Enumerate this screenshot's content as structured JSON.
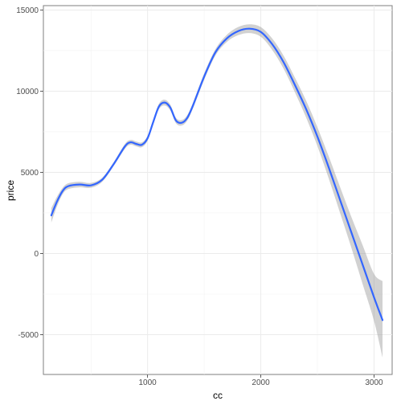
{
  "chart_data": {
    "type": "line",
    "title": "",
    "xlabel": "cc",
    "ylabel": "price",
    "xlim": [
      80,
      3160
    ],
    "ylim": [
      -7450,
      15270
    ],
    "grid": true,
    "legend": "none",
    "x_ticks": [
      1000,
      2000,
      3000
    ],
    "x_tick_labels": [
      "1000",
      "2000",
      "3000"
    ],
    "y_ticks": [
      -5000,
      0,
      5000,
      10000,
      15000
    ],
    "y_tick_labels": [
      "-5000",
      "0",
      "5000",
      "10000",
      "15000"
    ],
    "series": [
      {
        "style": "smooth",
        "color": "#3366ff",
        "band_color": "#cccccc",
        "points": [
          {
            "x": 150,
            "y": 2350,
            "lower": 1900,
            "upper": 2800
          },
          {
            "x": 200,
            "y": 3200,
            "lower": 2900,
            "upper": 3500
          },
          {
            "x": 250,
            "y": 3850,
            "lower": 3650,
            "upper": 4050
          },
          {
            "x": 300,
            "y": 4150,
            "lower": 3970,
            "upper": 4330
          },
          {
            "x": 400,
            "y": 4250,
            "lower": 4080,
            "upper": 4420
          },
          {
            "x": 500,
            "y": 4200,
            "lower": 4050,
            "upper": 4350
          },
          {
            "x": 600,
            "y": 4550,
            "lower": 4420,
            "upper": 4680
          },
          {
            "x": 700,
            "y": 5500,
            "lower": 5380,
            "upper": 5620
          },
          {
            "x": 800,
            "y": 6600,
            "lower": 6450,
            "upper": 6750
          },
          {
            "x": 850,
            "y": 6850,
            "lower": 6700,
            "upper": 7000
          },
          {
            "x": 900,
            "y": 6750,
            "lower": 6600,
            "upper": 6900
          },
          {
            "x": 950,
            "y": 6700,
            "lower": 6550,
            "upper": 6850
          },
          {
            "x": 1000,
            "y": 7100,
            "lower": 6950,
            "upper": 7250
          },
          {
            "x": 1050,
            "y": 8100,
            "lower": 7950,
            "upper": 8250
          },
          {
            "x": 1100,
            "y": 9050,
            "lower": 8880,
            "upper": 9220
          },
          {
            "x": 1150,
            "y": 9300,
            "lower": 9120,
            "upper": 9480
          },
          {
            "x": 1200,
            "y": 9000,
            "lower": 8820,
            "upper": 9180
          },
          {
            "x": 1250,
            "y": 8200,
            "lower": 8030,
            "upper": 8370
          },
          {
            "x": 1300,
            "y": 8050,
            "lower": 7880,
            "upper": 8220
          },
          {
            "x": 1350,
            "y": 8350,
            "lower": 8180,
            "upper": 8520
          },
          {
            "x": 1400,
            "y": 9100,
            "lower": 8920,
            "upper": 9280
          },
          {
            "x": 1500,
            "y": 10900,
            "lower": 10700,
            "upper": 11100
          },
          {
            "x": 1600,
            "y": 12400,
            "lower": 12200,
            "upper": 12600
          },
          {
            "x": 1700,
            "y": 13250,
            "lower": 13030,
            "upper": 13470
          },
          {
            "x": 1800,
            "y": 13700,
            "lower": 13450,
            "upper": 13950
          },
          {
            "x": 1900,
            "y": 13850,
            "lower": 13580,
            "upper": 14120
          },
          {
            "x": 2000,
            "y": 13650,
            "lower": 13350,
            "upper": 13950
          },
          {
            "x": 2100,
            "y": 12900,
            "lower": 12550,
            "upper": 13250
          },
          {
            "x": 2200,
            "y": 11800,
            "lower": 11400,
            "upper": 12200
          },
          {
            "x": 2300,
            "y": 10400,
            "lower": 9950,
            "upper": 10850
          },
          {
            "x": 2400,
            "y": 8900,
            "lower": 8380,
            "upper": 9420
          },
          {
            "x": 2500,
            "y": 7200,
            "lower": 6620,
            "upper": 7780
          },
          {
            "x": 2600,
            "y": 5300,
            "lower": 4620,
            "upper": 5980
          },
          {
            "x": 2700,
            "y": 3300,
            "lower": 2500,
            "upper": 4100
          },
          {
            "x": 2800,
            "y": 1300,
            "lower": 350,
            "upper": 2250
          },
          {
            "x": 2900,
            "y": -700,
            "lower": -1900,
            "upper": 500
          },
          {
            "x": 3000,
            "y": -2700,
            "lower": -4150,
            "upper": -1250
          },
          {
            "x": 3075,
            "y": -4100,
            "lower": -6400,
            "upper": -1700
          }
        ]
      }
    ]
  }
}
